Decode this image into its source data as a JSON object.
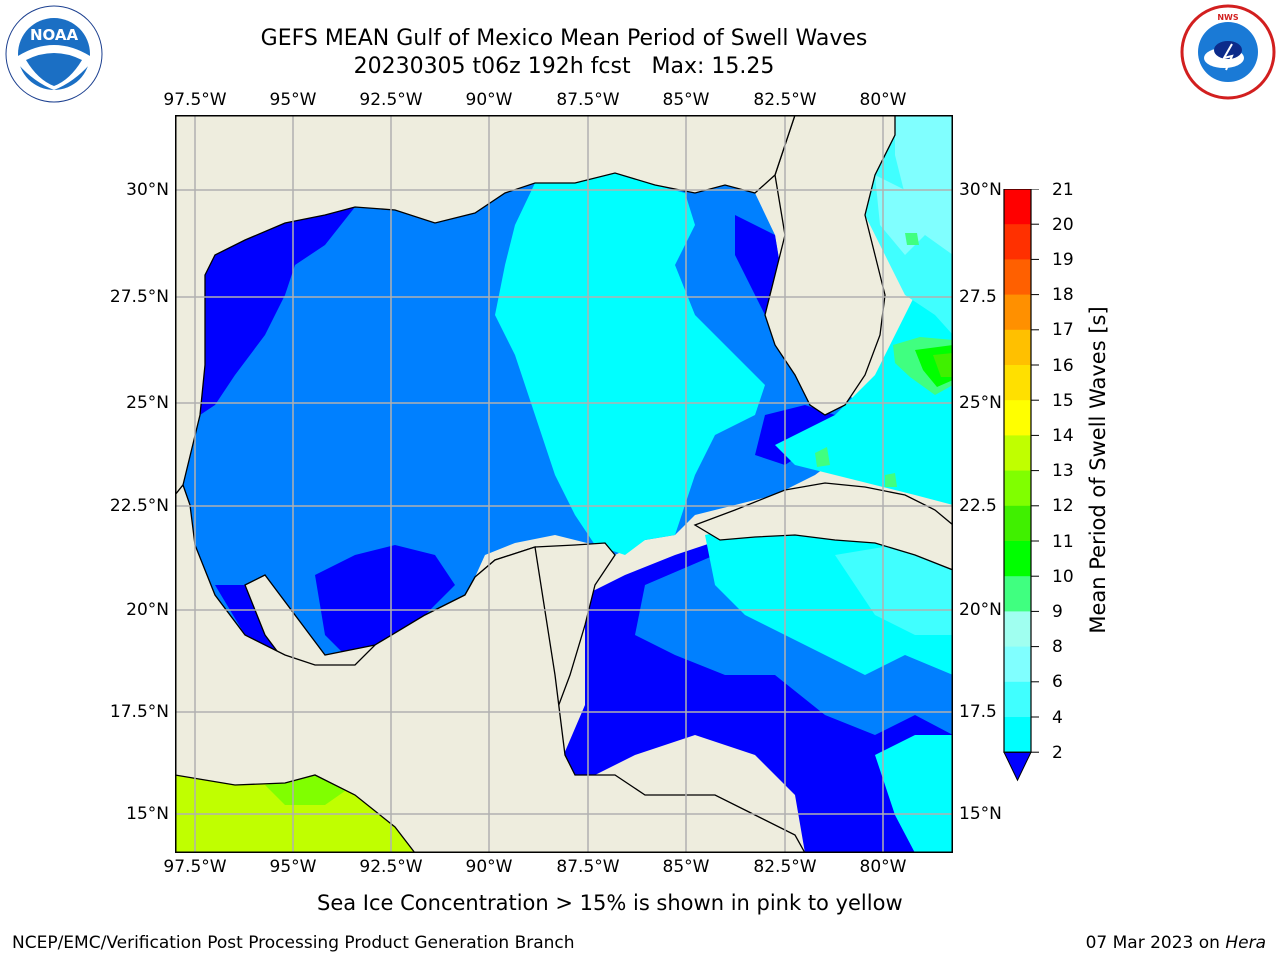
{
  "title": {
    "line1": "GEFS MEAN Gulf of Mexico Mean Period of Swell Waves",
    "line2": "20230305 t06z 192h fcst   Max: 15.25"
  },
  "map": {
    "lon_labels": [
      "97.5°W",
      "95°W",
      "92.5°W",
      "90°W",
      "87.5°W",
      "85°W",
      "82.5°W",
      "80°W"
    ],
    "lat_labels_left": [
      "30°N",
      "27.5°N",
      "25°N",
      "22.5°N",
      "20°N",
      "17.5°N",
      "15°N"
    ],
    "lat_labels_right": [
      "30°N",
      "27.5",
      "25°N",
      "22.5",
      "20°N",
      "17.5",
      "15°N"
    ],
    "colors": {
      "land": "#eeedde",
      "grid": "#b0b0b0",
      "coast": "#000000"
    }
  },
  "colorbar": {
    "label": "Mean Period of Swell Waves [s]",
    "ticks": [
      "21",
      "20",
      "19",
      "18",
      "17",
      "16",
      "15",
      "14",
      "13",
      "12",
      "11",
      "10",
      "9",
      "8",
      "6",
      "4",
      "2"
    ],
    "colors": [
      "#0000ff",
      "#0080ff",
      "#00ffff",
      "#40ffff",
      "#80ffff",
      "#a0fff0",
      "#40ff80",
      "#00ff00",
      "#40f000",
      "#80ff00",
      "#c0ff00",
      "#ffff00",
      "#ffe000",
      "#ffc000",
      "#ff9000",
      "#ff6000",
      "#ff3000",
      "#ff0000"
    ]
  },
  "footer": {
    "sea_ice": "Sea Ice Concentration > 15% is shown in pink to yellow",
    "credit": "NCEP/EMC/Verification Post Processing Product Generation Branch",
    "date": "07 Mar 2023 on ",
    "machine": "Hera"
  },
  "logos": {
    "left": "noaa-logo",
    "left_text": "NOAA",
    "right": "national-weather-service-logo",
    "right_text": "NATIONAL WEATHER SERVICE"
  }
}
